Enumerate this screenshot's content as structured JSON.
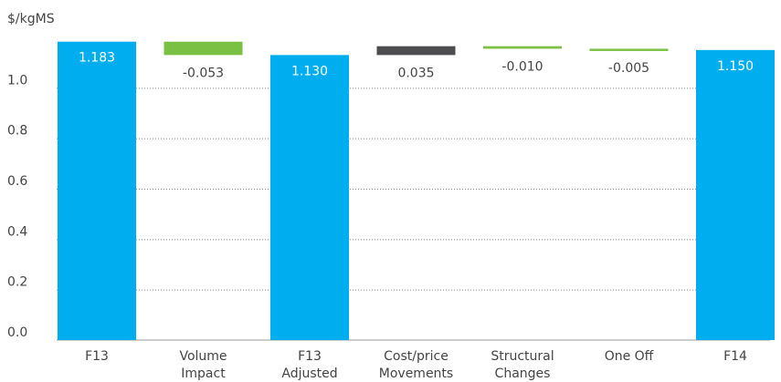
{
  "chart_data": {
    "type": "bar",
    "subtype": "waterfall",
    "title": "",
    "xlabel": "",
    "ylabel": "$/kgMS",
    "ylim": [
      0,
      1.2
    ],
    "yticks": [
      "0.0",
      "0.2",
      "0.4",
      "0.6",
      "0.8",
      "1.0"
    ],
    "grid": "horizontal-dotted",
    "categories": [
      [
        "F13"
      ],
      [
        "Volume",
        "Impact"
      ],
      [
        "F13",
        "Adjusted"
      ],
      [
        "Cost/price",
        "Movements"
      ],
      [
        "Structural",
        "Changes"
      ],
      [
        "One Off"
      ],
      [
        "F14"
      ]
    ],
    "bars": [
      {
        "kind": "total",
        "value": 1.183,
        "label": "1.183"
      },
      {
        "kind": "delta",
        "base": 1.183,
        "value": -0.053,
        "label": "-0.053"
      },
      {
        "kind": "total",
        "value": 1.13,
        "label": "1.130"
      },
      {
        "kind": "delta",
        "base": 1.13,
        "value": 0.035,
        "label": "0.035"
      },
      {
        "kind": "delta",
        "base": 1.165,
        "value": -0.01,
        "label": "-0.010"
      },
      {
        "kind": "delta",
        "base": 1.155,
        "value": -0.005,
        "label": "-0.005"
      },
      {
        "kind": "total",
        "value": 1.15,
        "label": "1.150"
      }
    ],
    "colors": {
      "total": "#00AEEF",
      "negative": "#7AC143",
      "positive": "#4D4D4F",
      "grid": "#8a8a8a",
      "total_label": "#ffffff",
      "delta_label": "#444444"
    }
  }
}
